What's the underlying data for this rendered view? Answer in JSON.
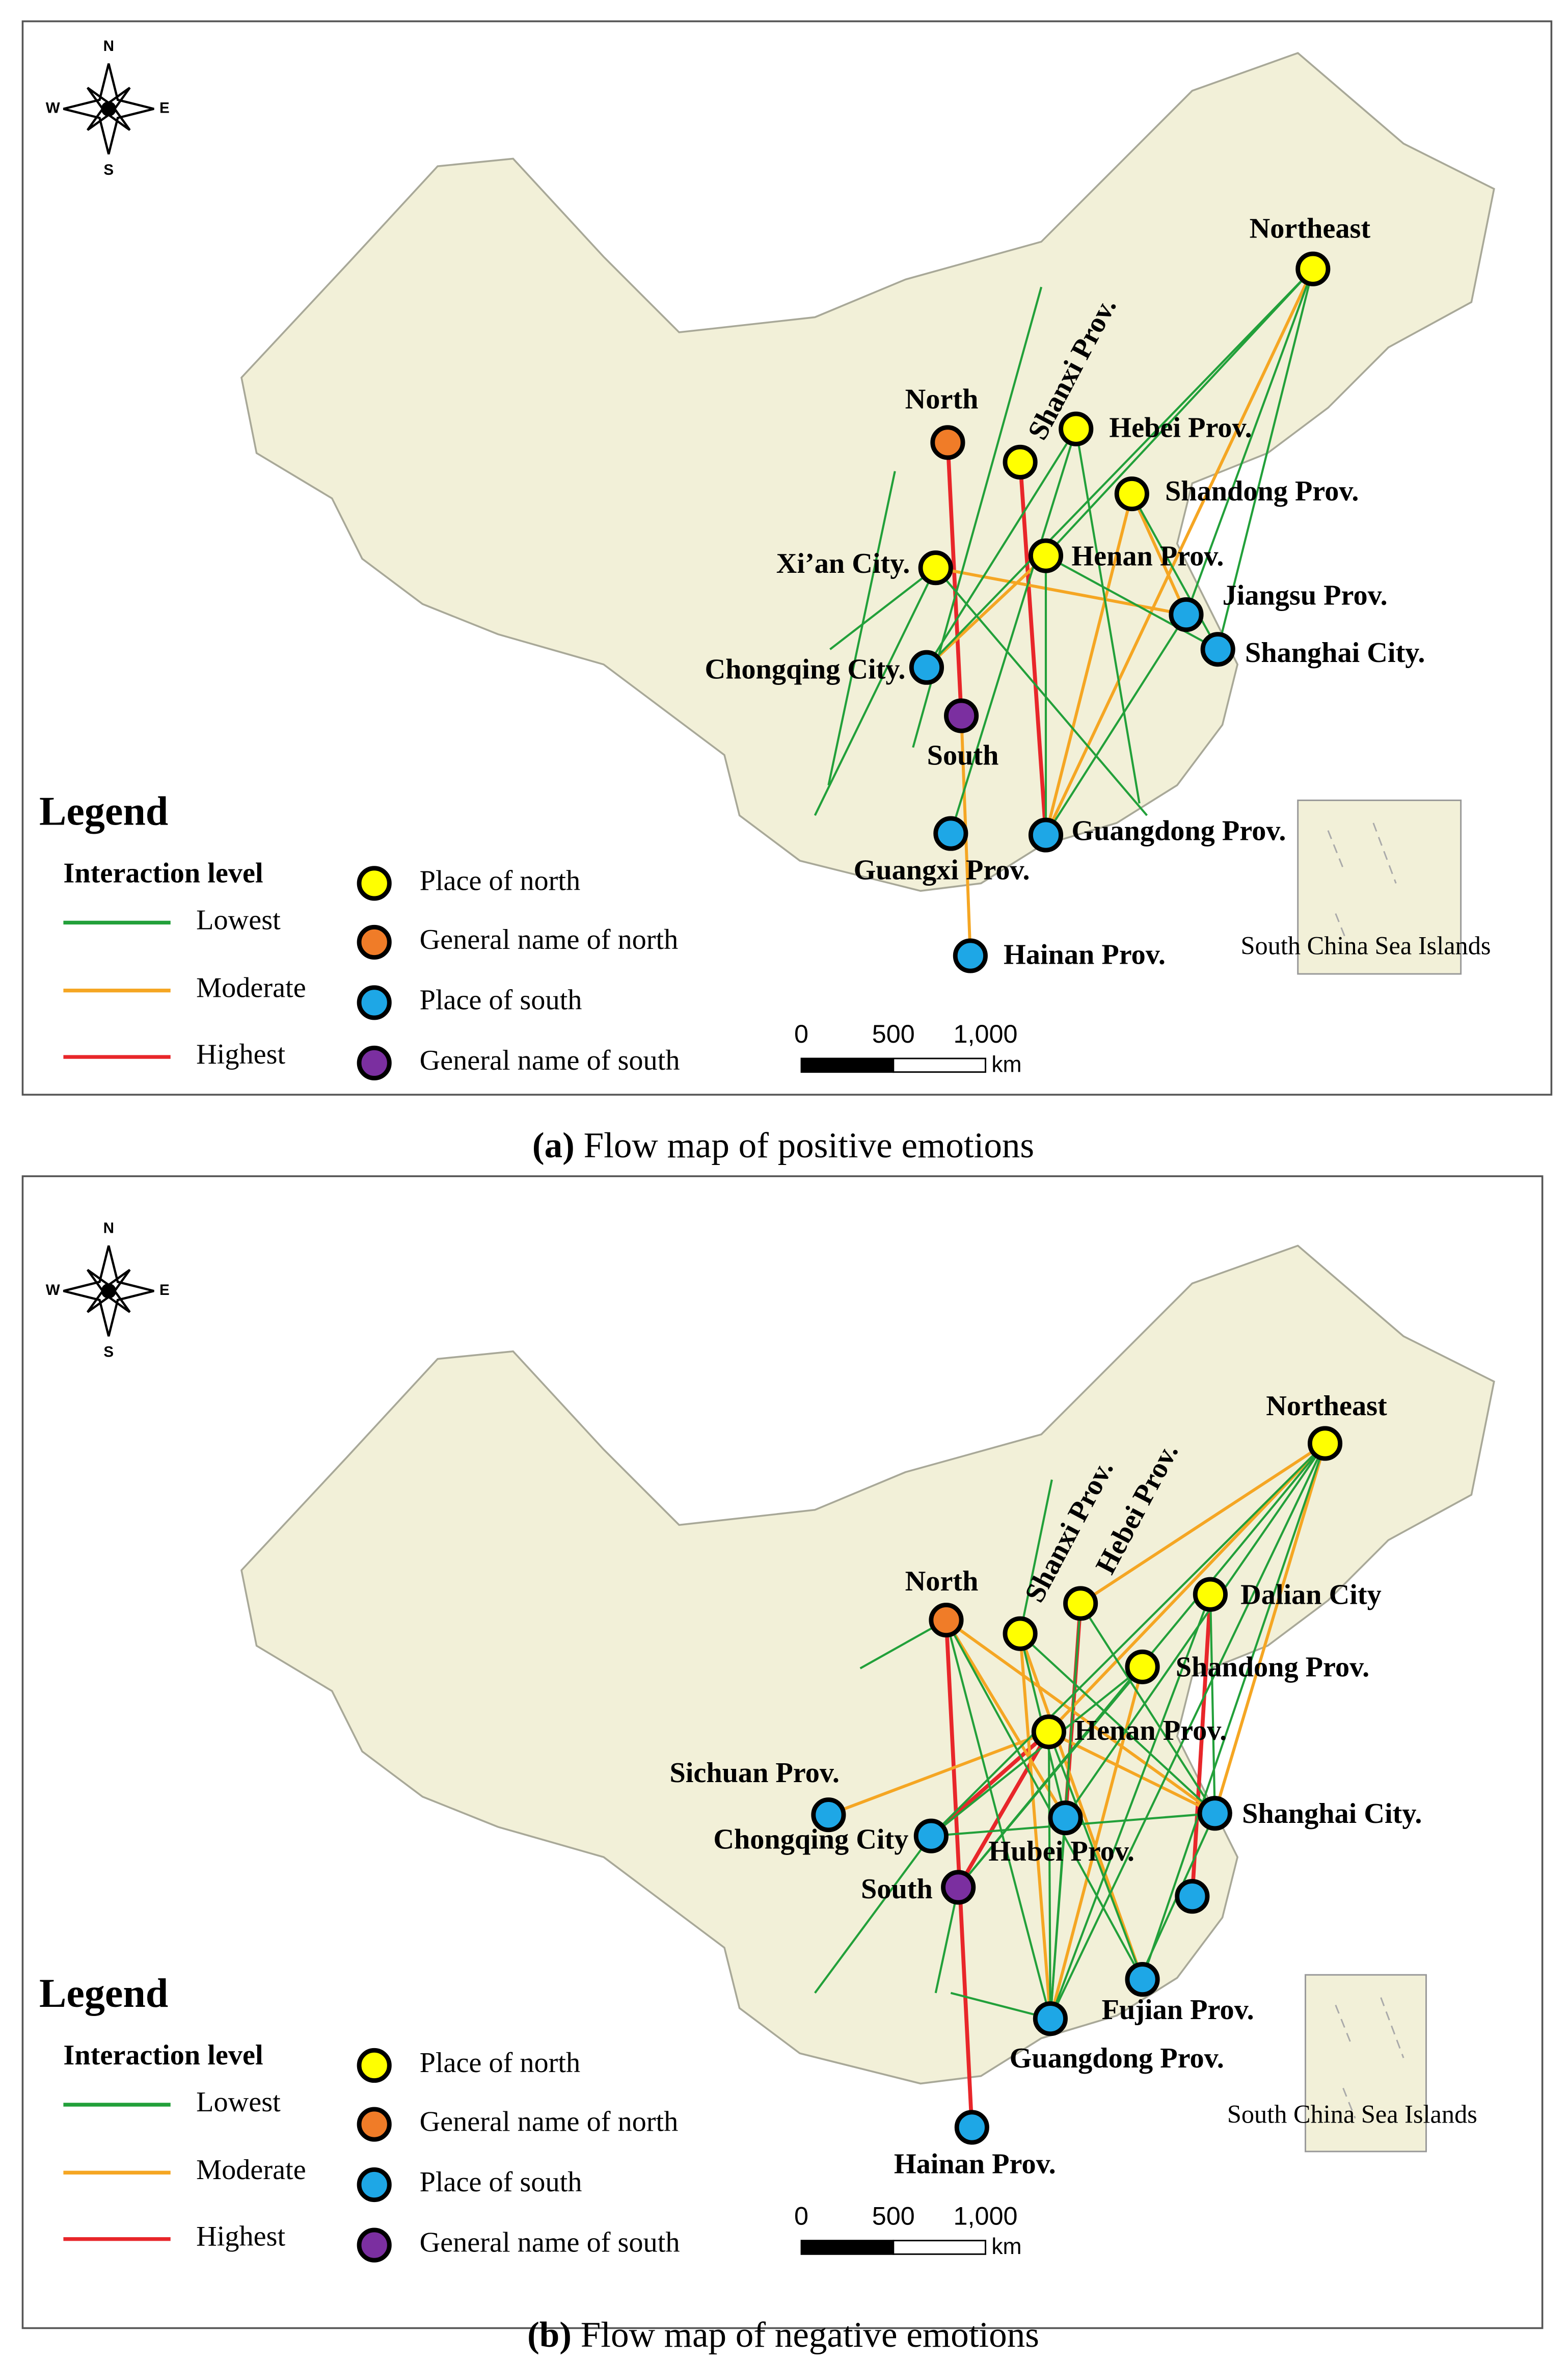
{
  "panels": [
    {
      "caption": {
        "label": "(a)",
        "text": "Flow map of positive emotions"
      },
      "compass": {
        "n": "N",
        "s": "S",
        "w": "W",
        "e": "E"
      },
      "places": [
        "Northeast",
        "North",
        "Shanxi Prov.",
        "Hebei Prov.",
        "Shandong Prov.",
        "Xi’an City.",
        "Henan Prov.",
        "Jiangsu Prov.",
        "Shanghai City.",
        "Chongqing City.",
        "South",
        "Guangxi Prov.",
        "Guangdong Prov.",
        "Hainan Prov."
      ],
      "legend": {
        "title": "Legend",
        "interaction_title": "Interaction level",
        "levels": [
          "Lowest",
          "Moderate",
          "Highest"
        ],
        "place_types": [
          "Place of north",
          "General name of north",
          "Place of south",
          "General name of south"
        ]
      },
      "scale": {
        "ticks": [
          "0",
          "500",
          "1,000"
        ],
        "unit": "km"
      },
      "inset": "South China Sea Islands"
    },
    {
      "caption": {
        "label": "(b)",
        "text": "Flow map of negative emotions"
      },
      "compass": {
        "n": "N",
        "s": "S",
        "w": "W",
        "e": "E"
      },
      "places": [
        "Northeast",
        "North",
        "Shanxi Prov.",
        "Hebei Prov.",
        "Dalian City",
        "Shandong Prov.",
        "Henan Prov.",
        "Sichuan Prov.",
        "Chongqing City",
        "Hubei Prov.",
        "Shanghai City.",
        "South",
        "Fujian Prov.",
        "Guangdong Prov.",
        "Hainan Prov."
      ],
      "legend": {
        "title": "Legend",
        "interaction_title": "Interaction level",
        "levels": [
          "Lowest",
          "Moderate",
          "Highest"
        ],
        "place_types": [
          "Place of north",
          "General name of north",
          "Place of south",
          "General name of south"
        ]
      },
      "scale": {
        "ticks": [
          "0",
          "500",
          "1,000"
        ],
        "unit": "km"
      },
      "inset": "South China Sea Islands"
    }
  ]
}
